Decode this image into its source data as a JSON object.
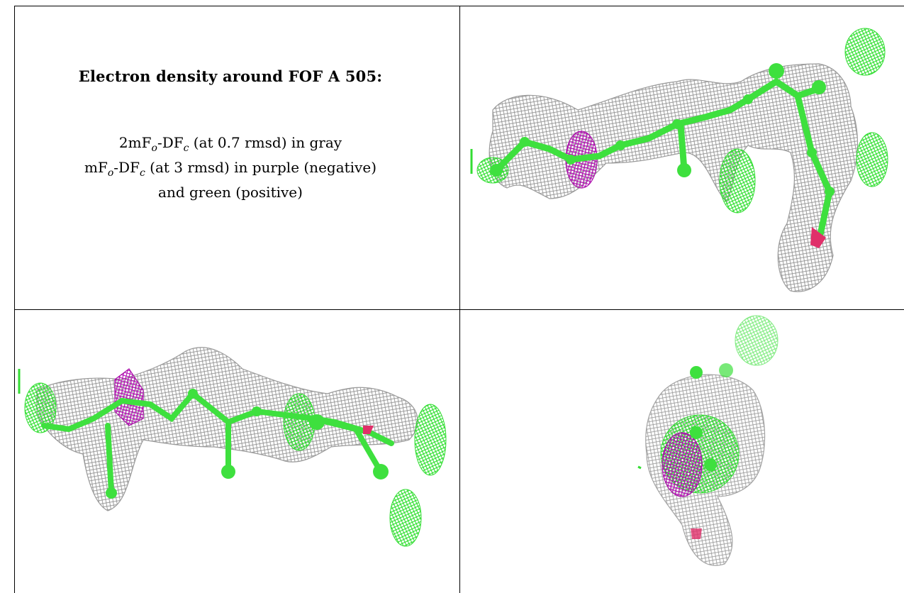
{
  "caption": {
    "title": "Electron density around FOF A 505:",
    "line1": {
      "a": "2mF",
      "o": "o",
      "b": "-DF",
      "c": "c",
      "rest": " (at 0.7 rmsd) in gray"
    },
    "line2": {
      "a": "mF",
      "o": "o",
      "b": "-DF",
      "c": "c",
      "rest": " (at 3 rmsd) in purple (negative)"
    },
    "line3": "and green (positive)"
  },
  "colors": {
    "mesh_gray": "#8c8c8c",
    "mesh_green": "#33dd33",
    "mesh_purple": "#aa10aa",
    "atom_green": "#3ee03e",
    "oxygen_red": "#e0306a"
  },
  "panels": [
    {
      "name": "view-top-right",
      "content": "density map image"
    },
    {
      "name": "view-bottom-left",
      "content": "density map image"
    },
    {
      "name": "view-bottom-right",
      "content": "density map image"
    }
  ]
}
